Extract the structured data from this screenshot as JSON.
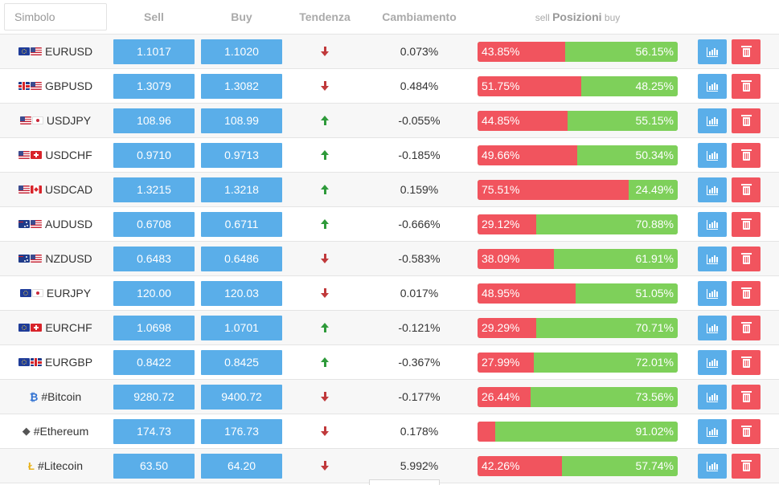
{
  "header": {
    "search_placeholder": "Simbolo",
    "sell": "Sell",
    "buy": "Buy",
    "trend": "Tendenza",
    "change": "Cambiamento",
    "positions_sell": "sell",
    "positions_title": "Posizioni",
    "positions_buy": "buy"
  },
  "colors": {
    "price_button": "#5aaee9",
    "sell_bar": "#f1545e",
    "buy_bar": "#7ed05a",
    "trend_down": "#c0393b",
    "trend_up": "#2e9a3a"
  },
  "rows": [
    {
      "symbol": "EURUSD",
      "sell": "1.1017",
      "buy": "1.1020",
      "trend": "down",
      "change": "0.073%",
      "sell_pct": "43.85%",
      "buy_pct": "56.15%",
      "sell_share": 43.85
    },
    {
      "symbol": "GBPUSD",
      "sell": "1.3079",
      "buy": "1.3082",
      "trend": "down",
      "change": "0.484%",
      "sell_pct": "51.75%",
      "buy_pct": "48.25%",
      "sell_share": 51.75
    },
    {
      "symbol": "USDJPY",
      "sell": "108.96",
      "buy": "108.99",
      "trend": "up",
      "change": "-0.055%",
      "sell_pct": "44.85%",
      "buy_pct": "55.15%",
      "sell_share": 44.85
    },
    {
      "symbol": "USDCHF",
      "sell": "0.9710",
      "buy": "0.9713",
      "trend": "up",
      "change": "-0.185%",
      "sell_pct": "49.66%",
      "buy_pct": "50.34%",
      "sell_share": 49.66
    },
    {
      "symbol": "USDCAD",
      "sell": "1.3215",
      "buy": "1.3218",
      "trend": "up",
      "change": "0.159%",
      "sell_pct": "75.51%",
      "buy_pct": "24.49%",
      "sell_share": 75.51
    },
    {
      "symbol": "AUDUSD",
      "sell": "0.6708",
      "buy": "0.6711",
      "trend": "up",
      "change": "-0.666%",
      "sell_pct": "29.12%",
      "buy_pct": "70.88%",
      "sell_share": 29.12
    },
    {
      "symbol": "NZDUSD",
      "sell": "0.6483",
      "buy": "0.6486",
      "trend": "down",
      "change": "-0.583%",
      "sell_pct": "38.09%",
      "buy_pct": "61.91%",
      "sell_share": 38.09
    },
    {
      "symbol": "EURJPY",
      "sell": "120.00",
      "buy": "120.03",
      "trend": "down",
      "change": "0.017%",
      "sell_pct": "48.95%",
      "buy_pct": "51.05%",
      "sell_share": 48.95
    },
    {
      "symbol": "EURCHF",
      "sell": "1.0698",
      "buy": "1.0701",
      "trend": "up",
      "change": "-0.121%",
      "sell_pct": "29.29%",
      "buy_pct": "70.71%",
      "sell_share": 29.29
    },
    {
      "symbol": "EURGBP",
      "sell": "0.8422",
      "buy": "0.8425",
      "trend": "up",
      "change": "-0.367%",
      "sell_pct": "27.99%",
      "buy_pct": "72.01%",
      "sell_share": 27.99
    },
    {
      "symbol": "#Bitcoin",
      "sell": "9280.72",
      "buy": "9400.72",
      "trend": "down",
      "change": "-0.177%",
      "sell_pct": "26.44%",
      "buy_pct": "73.56%",
      "sell_share": 26.44
    },
    {
      "symbol": "#Ethereum",
      "sell": "174.73",
      "buy": "176.73",
      "trend": "down",
      "change": "0.178%",
      "sell_pct": "",
      "buy_pct": "91.02%",
      "sell_share": 8.98
    },
    {
      "symbol": "#Litecoin",
      "sell": "63.50",
      "buy": "64.20",
      "trend": "down",
      "change": "5.992%",
      "sell_pct": "42.26%",
      "buy_pct": "57.74%",
      "sell_share": 42.26
    }
  ]
}
